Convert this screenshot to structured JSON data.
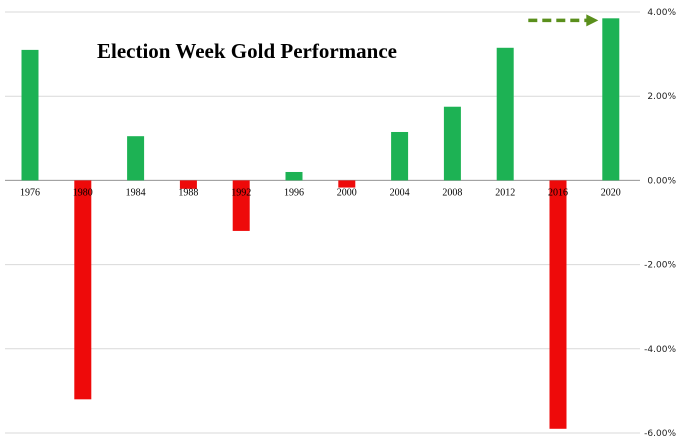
{
  "chart_data": {
    "type": "bar",
    "title": "Election Week Gold Performance",
    "xlabel": "",
    "ylabel": "",
    "categories": [
      "1976",
      "1980",
      "1984",
      "1988",
      "1992",
      "1996",
      "2000",
      "2004",
      "2008",
      "2012",
      "2016",
      "2020"
    ],
    "values": [
      3.1,
      -5.2,
      1.05,
      -0.2,
      -1.2,
      0.2,
      -0.17,
      1.15,
      1.75,
      3.15,
      -5.9,
      3.85
    ],
    "ylim": [
      -6,
      4
    ],
    "yticks": [
      4,
      2,
      0,
      -2,
      -4,
      -6
    ],
    "ytick_labels": [
      "4.00%",
      "2.00%",
      "0.00%",
      "-2.00%",
      "-4.00%",
      "-6.00%"
    ],
    "grid": true,
    "y_axis_position": "right",
    "colors": {
      "positive": "#1db254",
      "negative": "#ee0a0a",
      "annotation_arrow": "#5a8f1c"
    },
    "annotation": {
      "type": "dashed-arrow",
      "target_category": "2020"
    }
  }
}
